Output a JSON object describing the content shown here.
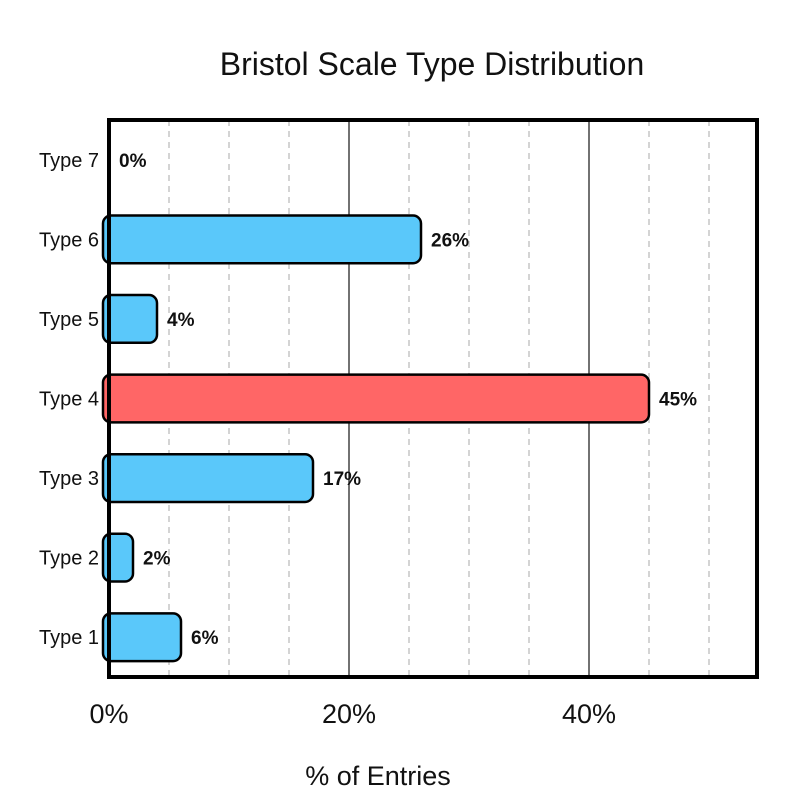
{
  "chart_data": {
    "type": "bar",
    "orientation": "horizontal",
    "title": "Bristol Scale Type Distribution",
    "xlabel": "% of Entries",
    "ylabel": "",
    "xlim": [
      0,
      54
    ],
    "x_ticks": [
      {
        "value": 0,
        "label": "0%"
      },
      {
        "value": 20,
        "label": "20%"
      },
      {
        "value": 40,
        "label": "40%"
      }
    ],
    "minor_grid_step": 5,
    "grid": true,
    "categories": [
      "Type 7",
      "Type 6",
      "Type 5",
      "Type 4",
      "Type 3",
      "Type 2",
      "Type 1"
    ],
    "values": [
      0,
      26,
      4,
      45,
      17,
      2,
      6
    ],
    "value_labels": [
      "0%",
      "26%",
      "4%",
      "45%",
      "17%",
      "2%",
      "6%"
    ],
    "highlight_category": "Type 4",
    "colors": {
      "bar": "#5ac8fa",
      "highlight": "#ff6666",
      "frame": "#000000",
      "major_grid": "#444444",
      "minor_grid": "#aaaaaa"
    }
  }
}
